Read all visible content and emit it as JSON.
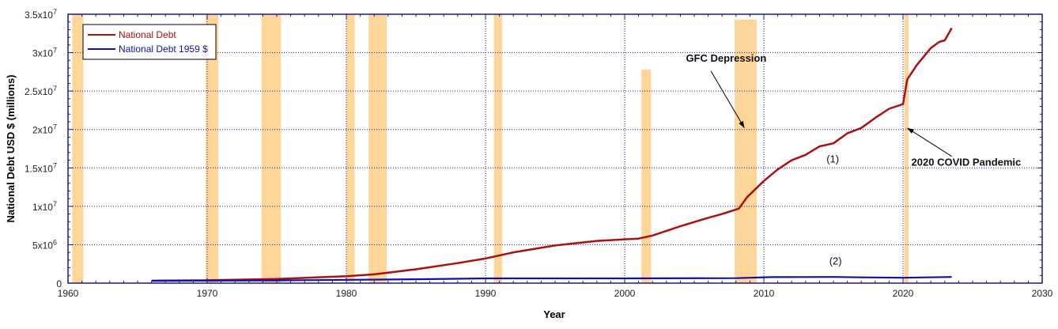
{
  "chart_data": {
    "type": "line",
    "title": "",
    "xlabel": "Year",
    "ylabel": "National Debt USD $ (millions)",
    "xlim": [
      1960,
      2030
    ],
    "ylim": [
      0,
      35000000
    ],
    "x_ticks": [
      "1960",
      "1970",
      "1980",
      "1990",
      "2000",
      "2010",
      "2020",
      "2030"
    ],
    "y_ticks": [
      {
        "value": 0,
        "mant": "0",
        "exp": ""
      },
      {
        "value": 5000000,
        "mant": "5x10",
        "exp": "6"
      },
      {
        "value": 10000000,
        "mant": "1x10",
        "exp": "7"
      },
      {
        "value": 15000000,
        "mant": "1.5x10",
        "exp": "7"
      },
      {
        "value": 20000000,
        "mant": "2x10",
        "exp": "7"
      },
      {
        "value": 25000000,
        "mant": "2.5x10",
        "exp": "7"
      },
      {
        "value": 30000000,
        "mant": "3x10",
        "exp": "7"
      },
      {
        "value": 35000000,
        "mant": "3.5x10",
        "exp": "7"
      }
    ],
    "grid": true,
    "legend_position": "top-left",
    "recession_bands": [
      {
        "start": 1960.3,
        "end": 1961.1,
        "top": 35000000
      },
      {
        "start": 1969.9,
        "end": 1970.8,
        "top": 35000000
      },
      {
        "start": 1973.9,
        "end": 1975.3,
        "top": 35000000
      },
      {
        "start": 1980.0,
        "end": 1980.6,
        "top": 35000000
      },
      {
        "start": 1981.6,
        "end": 1982.9,
        "top": 35000000
      },
      {
        "start": 1990.6,
        "end": 1991.2,
        "top": 35000000
      },
      {
        "start": 2001.2,
        "end": 2001.9,
        "top": 27800000
      },
      {
        "start": 2007.9,
        "end": 2009.5,
        "top": 34300000
      },
      {
        "start": 2020.1,
        "end": 2020.4,
        "top": 35000000
      }
    ],
    "series": [
      {
        "name": "National Debt",
        "color": "#aa1111",
        "x": [
          1966,
          1970,
          1975,
          1980,
          1982,
          1985,
          1988,
          1990,
          1992,
          1995,
          1998,
          2000,
          2001,
          2002,
          2004,
          2006,
          2007,
          2008.2,
          2008.8,
          2010,
          2011,
          2012,
          2013,
          2014,
          2015,
          2016,
          2017,
          2018,
          2019,
          2020.0,
          2020.3,
          2021,
          2022,
          2022.6,
          2023,
          2023.5
        ],
        "y": [
          320000,
          370000,
          550000,
          900000,
          1140000,
          1800000,
          2600000,
          3200000,
          4000000,
          4900000,
          5500000,
          5700000,
          5800000,
          6200000,
          7400000,
          8500000,
          9000000,
          9700000,
          11200000,
          13300000,
          14800000,
          16000000,
          16700000,
          17800000,
          18200000,
          19500000,
          20200000,
          21500000,
          22700000,
          23300000,
          26500000,
          28400000,
          30600000,
          31400000,
          31600000,
          33200000
        ]
      },
      {
        "name": "National Debt 1959 $",
        "color": "#1111aa",
        "x": [
          1966,
          1975,
          1985,
          1990,
          2000,
          2008,
          2009,
          2010.5,
          2015,
          2017,
          2020,
          2023.5
        ],
        "y": [
          300000,
          350000,
          500000,
          620000,
          620000,
          650000,
          700000,
          780000,
          800000,
          750000,
          700000,
          800000
        ]
      }
    ],
    "annotations": [
      {
        "text": "GFC Depression",
        "x": 2004.4,
        "y": 28800000,
        "arrow_from": [
          2006.2,
          27600000
        ],
        "arrow_to": [
          2008.6,
          20200000
        ],
        "bold": true
      },
      {
        "text": "2020 COVID Pandemic",
        "x": 2020.6,
        "y": 15300000,
        "arrow_from": [
          2023.5,
          16500000
        ],
        "arrow_to": [
          2020.3,
          20200000
        ],
        "bold": true
      },
      {
        "text": "(1)",
        "x": 2014.5,
        "y": 15700000,
        "bold": false
      },
      {
        "text": "(2)",
        "x": 2014.7,
        "y": 2400000,
        "bold": false
      }
    ]
  }
}
